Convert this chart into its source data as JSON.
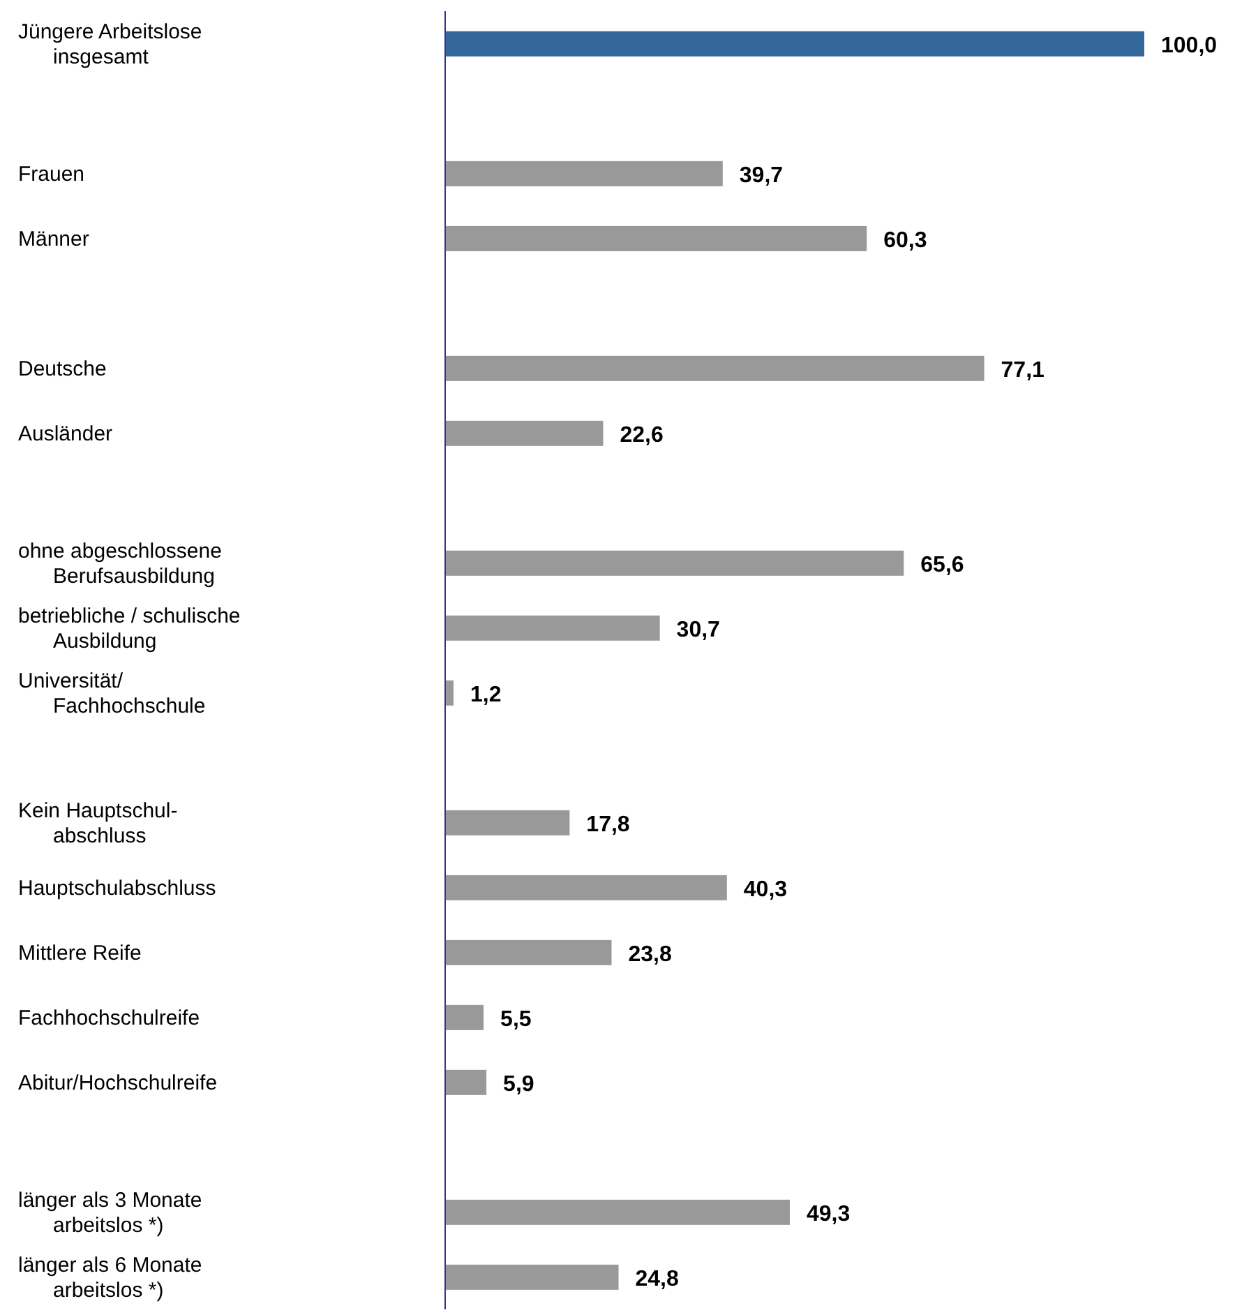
{
  "chart_data": {
    "type": "bar",
    "orientation": "horizontal",
    "categories": [
      "Jüngere Arbeitslose\ninsgesamt",
      null,
      "Frauen",
      "Männer",
      null,
      "Deutsche",
      "Ausländer",
      null,
      "ohne abgeschlossene\nBerufsausbildung",
      "betriebliche / schulische\nAusbildung",
      "Universität/\nFachhochschule",
      null,
      "Kein Hauptschul-\nabschluss",
      "Hauptschulabschluss",
      "Mittlere Reife",
      "Fachhochschulreife",
      "Abitur/Hochschulreife",
      null,
      "länger als 3 Monate\narbeitslos *)",
      "länger als 6 Monate\narbeitslos *)"
    ],
    "values": [
      100.0,
      null,
      39.7,
      60.3,
      null,
      77.1,
      22.6,
      null,
      65.6,
      30.7,
      1.2,
      null,
      17.8,
      40.3,
      23.8,
      5.5,
      5.9,
      null,
      49.3,
      24.8
    ],
    "value_labels": [
      "100,0",
      null,
      "39,7",
      "60,3",
      null,
      "77,1",
      "22,6",
      null,
      "65,6",
      "30,7",
      "1,2",
      null,
      "17,8",
      "40,3",
      "23,8",
      "5,5",
      "5,9",
      null,
      "49,3",
      "24,8"
    ],
    "colors": [
      "#336699",
      null,
      "#999999",
      "#999999",
      null,
      "#999999",
      "#999999",
      null,
      "#999999",
      "#999999",
      "#999999",
      null,
      "#999999",
      "#999999",
      "#999999",
      "#999999",
      "#999999",
      null,
      "#999999",
      "#999999"
    ],
    "xlim": [
      0,
      100
    ],
    "tick_labels": "y"
  }
}
